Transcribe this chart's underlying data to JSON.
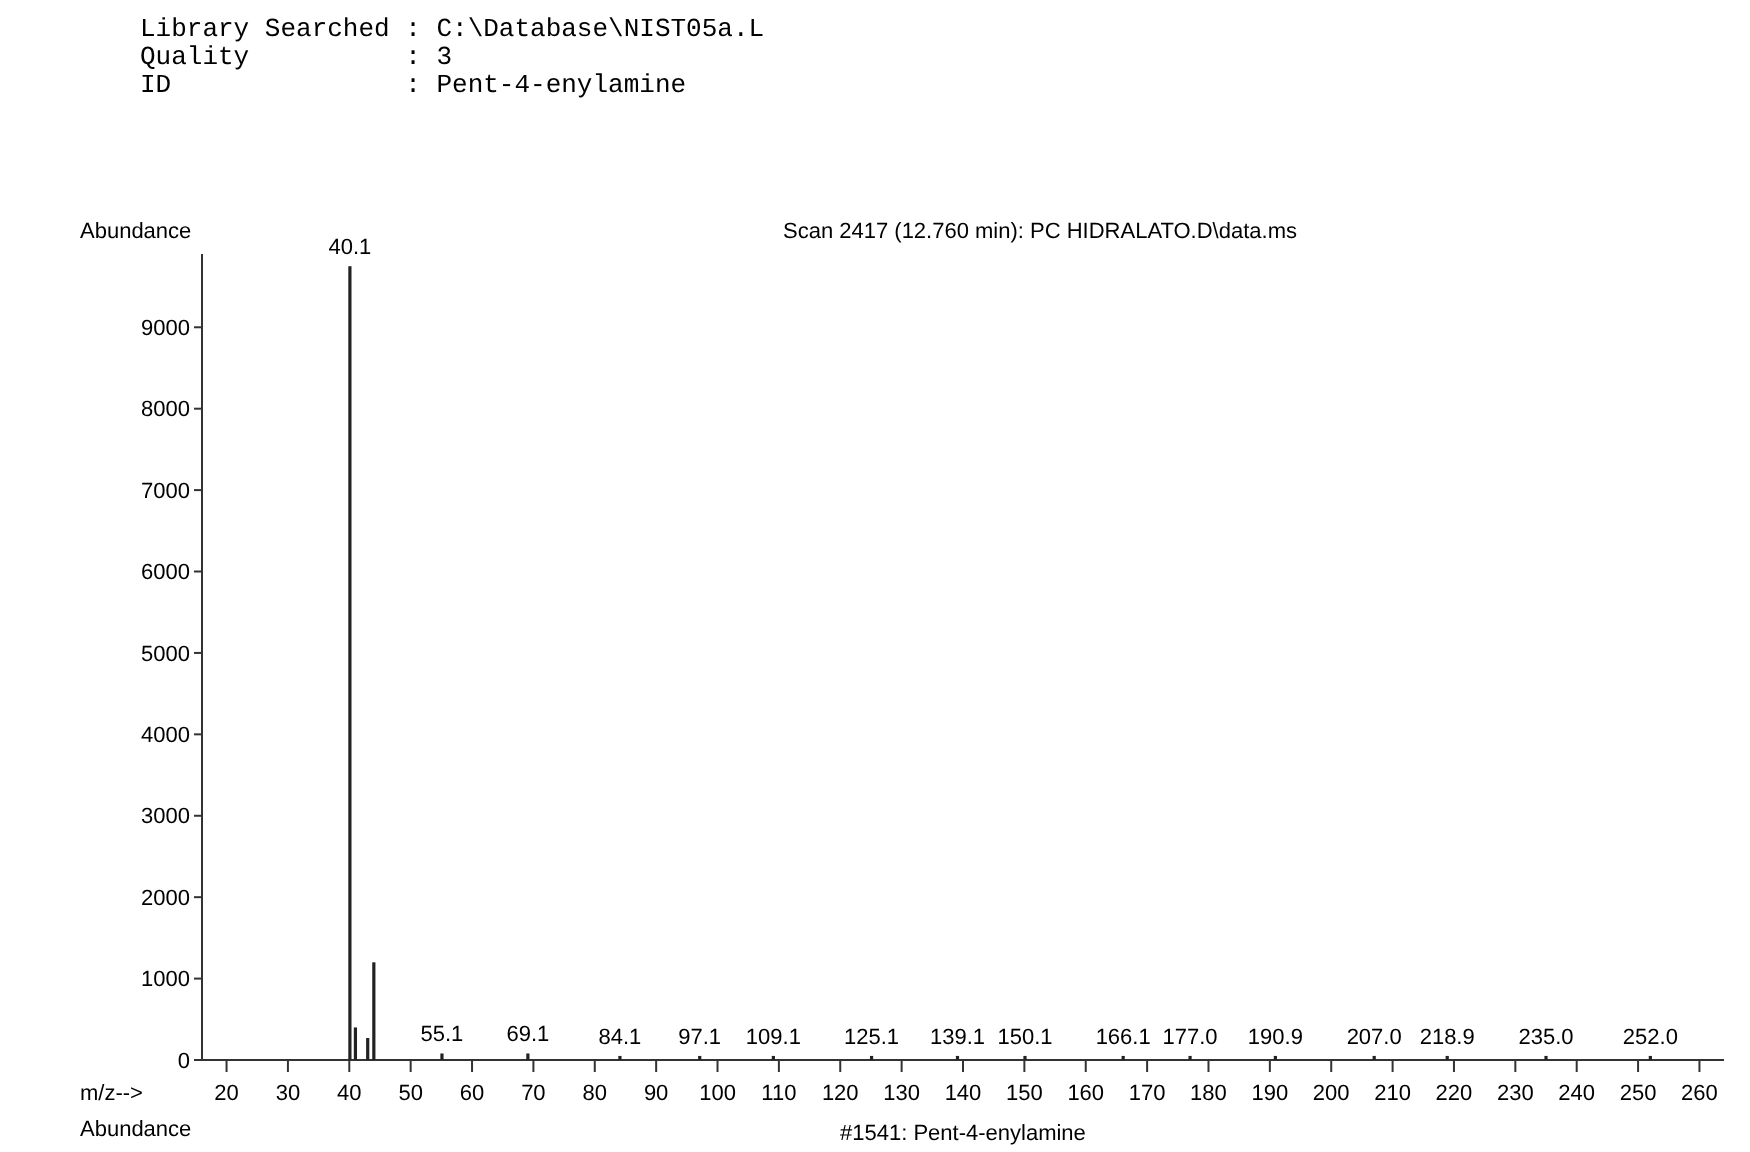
{
  "chart_data": {
    "type": "bar",
    "title": "Scan 2417 (12.760 min): PC HIDRALATO.D\\data.ms",
    "xlabel": "m/z-->",
    "ylabel": "Abundance",
    "x": [
      40.1,
      41,
      43,
      44,
      55.1,
      69.1,
      84.1,
      97.1,
      109.1,
      125.1,
      139.1,
      150.1,
      166.1,
      177.0,
      190.9,
      207.0,
      218.9,
      235.0,
      252.0
    ],
    "series": [
      {
        "color": "#222222",
        "values": [
          9750,
          400,
          270,
          1200,
          80,
          80,
          50,
          50,
          50,
          50,
          50,
          50,
          50,
          50,
          50,
          50,
          50,
          50,
          50
        ]
      }
    ],
    "xlim": [
      16,
      264
    ],
    "xticks": [
      20,
      30,
      40,
      50,
      60,
      70,
      80,
      90,
      100,
      110,
      120,
      130,
      140,
      150,
      160,
      170,
      180,
      190,
      200,
      210,
      220,
      230,
      240,
      250,
      260
    ],
    "ylim": [
      0,
      9900
    ],
    "yticks": [
      0,
      1000,
      2000,
      3000,
      4000,
      5000,
      6000,
      7000,
      8000,
      9000
    ],
    "annotations": [
      "Library Searched : C:\\Database\\NIST05a.L",
      "Quality          : 3",
      "ID               : Pent-4-enylamine",
      "Abundance",
      "#1541: Pent-4-enylamine",
      {
        "text": "40.1",
        "x": 40.1,
        "y": 9750
      },
      {
        "text": "55.1",
        "x": 55.1,
        "y": 80
      },
      {
        "text": "69.1",
        "x": 69.1,
        "y": 80
      },
      {
        "text": "84.1",
        "x": 84.1,
        "y": 50
      },
      {
        "text": "97.1",
        "x": 97.1,
        "y": 50
      },
      {
        "text": "109.1",
        "x": 109.1,
        "y": 50
      },
      {
        "text": "125.1",
        "x": 125.1,
        "y": 50
      },
      {
        "text": "139.1",
        "x": 139.1,
        "y": 50
      },
      {
        "text": "150.1",
        "x": 150.1,
        "y": 50
      },
      {
        "text": "166.1",
        "x": 166.1,
        "y": 50
      },
      {
        "text": "177.0",
        "x": 177.0,
        "y": 50
      },
      {
        "text": "190.9",
        "x": 190.9,
        "y": 50
      },
      {
        "text": "207.0",
        "x": 207.0,
        "y": 50
      },
      {
        "text": "218.9",
        "x": 218.9,
        "y": 50
      },
      {
        "text": "235.0",
        "x": 235.0,
        "y": 50
      },
      {
        "text": "252.0",
        "x": 252.0,
        "y": 50
      }
    ]
  }
}
